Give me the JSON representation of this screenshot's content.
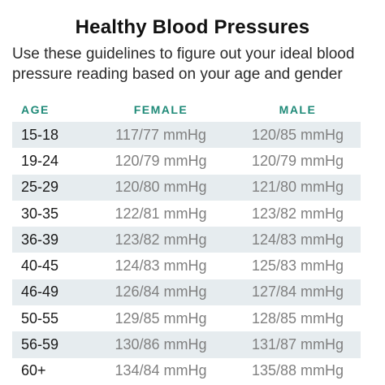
{
  "title": "Healthy Blood Pressures",
  "subtitle": "Use these guidelines to figure out your ideal blood pressure reading based on your age and gender",
  "table": {
    "headers": {
      "age": "AGE",
      "female": "FEMALE",
      "male": "MALE"
    },
    "rows": [
      {
        "age": "15-18",
        "female": "117/77 mmHg",
        "male": "120/85 mmHg"
      },
      {
        "age": "19-24",
        "female": "120/79 mmHg",
        "male": "120/79 mmHg"
      },
      {
        "age": "25-29",
        "female": "120/80 mmHg",
        "male": "121/80 mmHg"
      },
      {
        "age": "30-35",
        "female": "122/81 mmHg",
        "male": "123/82 mmHg"
      },
      {
        "age": "36-39",
        "female": "123/82 mmHg",
        "male": "124/83 mmHg"
      },
      {
        "age": "40-45",
        "female": "124/83 mmHg",
        "male": "125/83 mmHg"
      },
      {
        "age": "46-49",
        "female": "126/84 mmHg",
        "male": "127/84 mmHg"
      },
      {
        "age": "50-55",
        "female": "129/85 mmHg",
        "male": "128/85 mmHg"
      },
      {
        "age": "56-59",
        "female": "130/86 mmHg",
        "male": "131/87 mmHg"
      },
      {
        "age": "60+",
        "female": "134/84 mmHg",
        "male": "135/88 mmHg"
      }
    ]
  },
  "colors": {
    "header_accent": "#1f8a78",
    "row_shade": "#e6ecef",
    "value_text": "#808080"
  }
}
